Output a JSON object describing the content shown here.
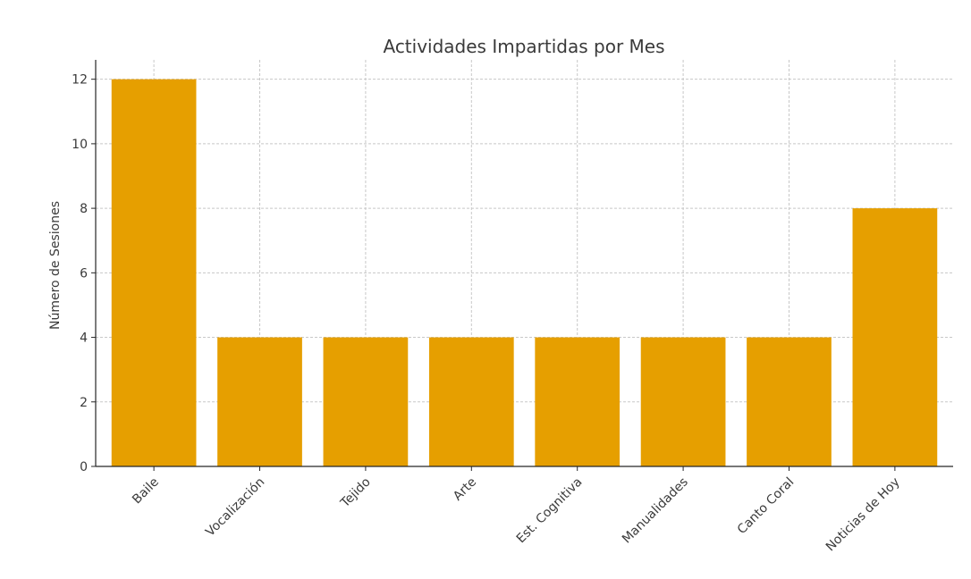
{
  "chart_data": {
    "type": "bar",
    "title": "Actividades Impartidas por Mes",
    "xlabel": "",
    "ylabel": "Número de Sesiones",
    "categories": [
      "Baile",
      "Vocalización",
      "Tejido",
      "Arte",
      "Est. Cognitiva",
      "Manualidades",
      "Canto Coral",
      "Noticias de Hoy"
    ],
    "values": [
      12,
      4,
      4,
      4,
      4,
      4,
      4,
      8
    ],
    "ylim": [
      0,
      12.6
    ],
    "yticks": [
      0,
      2,
      4,
      6,
      8,
      10,
      12
    ],
    "grid": true,
    "bar_color": "#E69F00"
  }
}
